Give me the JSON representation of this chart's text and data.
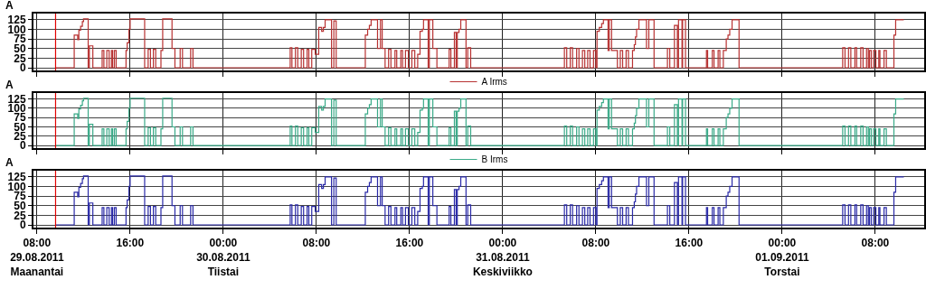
{
  "chart_data": [
    {
      "type": "step",
      "ylabel": "A",
      "legend": "bottom",
      "grid": true,
      "tick_labels": "y",
      "xlim": [
        "2011-08-29T07:42",
        "2011-09-01T12:12"
      ],
      "ylim": [
        -7,
        141
      ],
      "yticks": [
        0,
        25,
        50,
        75,
        100,
        125
      ],
      "xticks": [
        {
          "value": "2011-08-29T08:00",
          "label": null
        },
        {
          "value": "2011-08-29T16:00",
          "label": null
        },
        {
          "value": "2011-08-30T00:00",
          "label": null
        },
        {
          "value": "2011-08-30T08:00",
          "label": null
        },
        {
          "value": "2011-08-30T16:00",
          "label": null
        },
        {
          "value": "2011-08-31T00:00",
          "label": null
        },
        {
          "value": "2011-08-31T08:00",
          "label": null
        },
        {
          "value": "2011-08-31T16:00",
          "label": null
        },
        {
          "value": "2011-09-01T00:00",
          "label": null
        },
        {
          "value": "2011-09-01T08:00",
          "label": null
        }
      ],
      "ref_lines": [
        {
          "axis": "x",
          "value": "2011-08-29T09:36",
          "color": "#e00000"
        }
      ],
      "x": [
        "2011-08-29T09:36",
        "2011-08-29T11:12",
        "2011-08-29T11:30",
        "2011-08-29T11:36",
        "2011-08-29T11:45",
        "2011-08-29T11:54",
        "2011-08-29T12:00",
        "2011-08-29T12:24",
        "2011-08-29T12:30",
        "2011-08-29T12:48",
        "2011-08-29T13:36",
        "2011-08-29T13:45",
        "2011-08-29T14:00",
        "2011-08-29T14:12",
        "2011-08-29T14:24",
        "2011-08-29T14:30",
        "2011-08-29T14:39",
        "2011-08-29T14:48",
        "2011-08-29T15:39",
        "2011-08-29T15:45",
        "2011-08-29T15:54",
        "2011-08-29T16:00",
        "2011-08-29T17:15",
        "2011-08-29T17:33",
        "2011-08-29T17:45",
        "2011-08-29T18:00",
        "2011-08-29T18:12",
        "2011-08-29T18:39",
        "2011-08-29T18:48",
        "2011-08-29T19:36",
        "2011-08-29T19:51",
        "2011-08-29T20:18",
        "2011-08-29T20:30",
        "2011-08-29T21:12",
        "2011-08-29T21:24",
        "2011-08-30T05:45",
        "2011-08-30T05:54",
        "2011-08-30T06:12",
        "2011-08-30T06:24",
        "2011-08-30T06:42",
        "2011-08-30T06:54",
        "2011-08-30T07:12",
        "2011-08-30T07:21",
        "2011-08-30T07:36",
        "2011-08-30T07:54",
        "2011-08-30T08:12",
        "2011-08-30T08:27",
        "2011-08-30T08:36",
        "2011-08-30T08:45",
        "2011-08-30T09:18",
        "2011-08-30T09:30",
        "2011-08-30T09:42",
        "2011-08-30T12:12",
        "2011-08-30T12:24",
        "2011-08-30T12:33",
        "2011-08-30T12:42",
        "2011-08-30T13:15",
        "2011-08-30T13:30",
        "2011-08-30T13:39",
        "2011-08-30T13:54",
        "2011-08-30T14:12",
        "2011-08-30T14:24",
        "2011-08-30T14:45",
        "2011-08-30T14:54",
        "2011-08-30T15:15",
        "2011-08-30T15:24",
        "2011-08-30T15:39",
        "2011-08-30T15:54",
        "2011-08-30T16:12",
        "2011-08-30T16:27",
        "2011-08-30T16:42",
        "2011-08-30T16:54",
        "2011-08-30T17:06",
        "2011-08-30T17:12",
        "2011-08-30T17:36",
        "2011-08-30T17:42",
        "2011-08-30T18:00",
        "2011-08-30T18:21",
        "2011-08-30T19:24",
        "2011-08-30T19:33",
        "2011-08-30T19:51",
        "2011-08-30T20:00",
        "2011-08-30T20:06",
        "2011-08-30T20:15",
        "2011-08-30T20:24",
        "2011-08-30T20:51",
        "2011-08-30T21:00",
        "2011-08-30T21:15",
        "2011-08-31T05:18",
        "2011-08-31T05:30",
        "2011-08-31T05:48",
        "2011-08-31T06:00",
        "2011-08-31T06:21",
        "2011-08-31T06:33",
        "2011-08-31T06:51",
        "2011-08-31T07:03",
        "2011-08-31T07:18",
        "2011-08-31T07:30",
        "2011-08-31T07:48",
        "2011-08-31T08:00",
        "2011-08-31T08:06",
        "2011-08-31T08:18",
        "2011-08-31T08:30",
        "2011-08-31T08:39",
        "2011-08-31T09:03",
        "2011-08-31T09:09",
        "2011-08-31T09:21",
        "2011-08-31T09:51",
        "2011-08-31T10:06",
        "2011-08-31T10:18",
        "2011-08-31T10:36",
        "2011-08-31T10:48",
        "2011-08-31T11:09",
        "2011-08-31T11:18",
        "2011-08-31T11:24",
        "2011-08-31T11:30",
        "2011-08-31T11:42",
        "2011-08-31T12:21",
        "2011-08-31T12:33",
        "2011-08-31T13:00",
        "2011-08-31T14:09",
        "2011-08-31T14:21",
        "2011-08-31T14:45",
        "2011-08-31T15:00",
        "2011-08-31T15:06",
        "2011-08-31T15:24",
        "2011-08-31T15:27",
        "2011-08-31T15:42",
        "2011-08-31T17:30",
        "2011-08-31T17:36",
        "2011-08-31T18:00",
        "2011-08-31T18:09",
        "2011-08-31T18:30",
        "2011-08-31T18:39",
        "2011-08-31T18:57",
        "2011-08-31T19:12",
        "2011-08-31T19:21",
        "2011-08-31T19:30",
        "2011-08-31T19:42",
        "2011-08-31T20:18",
        "2011-09-01T05:12",
        "2011-09-01T05:24",
        "2011-09-01T05:42",
        "2011-09-01T05:54",
        "2011-09-01T06:15",
        "2011-09-01T06:24",
        "2011-09-01T06:45",
        "2011-09-01T06:57",
        "2011-09-01T07:15",
        "2011-09-01T07:24",
        "2011-09-01T07:30",
        "2011-09-01T07:39",
        "2011-09-01T07:51",
        "2011-09-01T08:03",
        "2011-09-01T08:18",
        "2011-09-01T08:24",
        "2011-09-01T08:45",
        "2011-09-01T08:57",
        "2011-09-01T09:36",
        "2011-09-01T09:45",
        "2011-09-01T10:27"
      ],
      "series": [
        {
          "name": "A Irms",
          "color": "#b83232",
          "values": [
            0,
            85,
            73,
            98,
            108,
            120,
            127,
            0,
            57,
            0,
            45,
            0,
            45,
            0,
            45,
            0,
            45,
            0,
            45,
            65,
            100,
            127,
            0,
            48,
            0,
            48,
            0,
            45,
            127,
            50,
            0,
            50,
            0,
            50,
            0,
            52,
            0,
            52,
            0,
            48,
            0,
            48,
            0,
            48,
            35,
            105,
            95,
            105,
            125,
            0,
            122,
            0,
            85,
            100,
            110,
            125,
            50,
            125,
            50,
            0,
            48,
            0,
            45,
            0,
            45,
            0,
            45,
            0,
            45,
            0,
            35,
            95,
            100,
            125,
            0,
            125,
            50,
            0,
            48,
            0,
            92,
            0,
            92,
            100,
            125,
            0,
            52,
            0,
            52,
            0,
            52,
            0,
            50,
            0,
            45,
            0,
            45,
            0,
            45,
            0,
            95,
            105,
            115,
            125,
            45,
            125,
            45,
            0,
            45,
            0,
            45,
            0,
            45,
            60,
            80,
            100,
            125,
            50,
            125,
            0,
            50,
            0,
            110,
            0,
            125,
            0,
            125,
            0,
            45,
            0,
            45,
            0,
            45,
            0,
            45,
            75,
            85,
            100,
            125,
            0,
            52,
            0,
            52,
            0,
            52,
            0,
            52,
            0,
            50,
            0,
            45,
            0,
            45,
            0,
            45,
            0,
            45,
            0,
            85,
            125,
            125
          ]
        }
      ]
    },
    {
      "type": "step",
      "ylabel": "A",
      "legend": "bottom",
      "grid": true,
      "tick_labels": "y",
      "xlim": [
        "2011-08-29T07:42",
        "2011-09-01T12:12"
      ],
      "ylim": [
        -7,
        141
      ],
      "yticks": [
        0,
        25,
        50,
        75,
        100,
        125
      ],
      "xticks": [
        {
          "value": "2011-08-29T08:00",
          "label": null
        },
        {
          "value": "2011-08-29T16:00",
          "label": null
        },
        {
          "value": "2011-08-30T00:00",
          "label": null
        },
        {
          "value": "2011-08-30T08:00",
          "label": null
        },
        {
          "value": "2011-08-30T16:00",
          "label": null
        },
        {
          "value": "2011-08-31T00:00",
          "label": null
        },
        {
          "value": "2011-08-31T08:00",
          "label": null
        },
        {
          "value": "2011-08-31T16:00",
          "label": null
        },
        {
          "value": "2011-09-01T00:00",
          "label": null
        },
        {
          "value": "2011-09-01T08:00",
          "label": null
        }
      ],
      "ref_lines": [
        {
          "axis": "x",
          "value": "2011-08-29T09:36",
          "color": "#e00000"
        }
      ],
      "x": [
        "2011-08-29T09:36",
        "2011-08-29T11:12",
        "2011-08-29T11:30",
        "2011-08-29T11:36",
        "2011-08-29T11:45",
        "2011-08-29T11:54",
        "2011-08-29T12:00",
        "2011-08-29T12:24",
        "2011-08-29T12:30",
        "2011-08-29T12:48",
        "2011-08-29T13:36",
        "2011-08-29T13:45",
        "2011-08-29T14:00",
        "2011-08-29T14:12",
        "2011-08-29T14:24",
        "2011-08-29T14:30",
        "2011-08-29T14:39",
        "2011-08-29T14:48",
        "2011-08-29T15:39",
        "2011-08-29T15:45",
        "2011-08-29T15:54",
        "2011-08-29T16:00",
        "2011-08-29T17:15",
        "2011-08-29T17:33",
        "2011-08-29T17:45",
        "2011-08-29T18:00",
        "2011-08-29T18:12",
        "2011-08-29T18:39",
        "2011-08-29T18:48",
        "2011-08-29T19:36",
        "2011-08-29T19:51",
        "2011-08-29T20:18",
        "2011-08-29T20:30",
        "2011-08-29T21:12",
        "2011-08-29T21:24",
        "2011-08-30T05:45",
        "2011-08-30T05:54",
        "2011-08-30T06:12",
        "2011-08-30T06:24",
        "2011-08-30T06:42",
        "2011-08-30T06:54",
        "2011-08-30T07:12",
        "2011-08-30T07:21",
        "2011-08-30T07:36",
        "2011-08-30T07:54",
        "2011-08-30T08:12",
        "2011-08-30T08:27",
        "2011-08-30T08:36",
        "2011-08-30T08:45",
        "2011-08-30T09:18",
        "2011-08-30T09:30",
        "2011-08-30T09:42",
        "2011-08-30T12:12",
        "2011-08-30T12:24",
        "2011-08-30T12:33",
        "2011-08-30T12:42",
        "2011-08-30T13:15",
        "2011-08-30T13:30",
        "2011-08-30T13:39",
        "2011-08-30T13:54",
        "2011-08-30T14:12",
        "2011-08-30T14:24",
        "2011-08-30T14:45",
        "2011-08-30T14:54",
        "2011-08-30T15:15",
        "2011-08-30T15:24",
        "2011-08-30T15:39",
        "2011-08-30T15:54",
        "2011-08-30T16:12",
        "2011-08-30T16:27",
        "2011-08-30T16:42",
        "2011-08-30T16:54",
        "2011-08-30T17:06",
        "2011-08-30T17:12",
        "2011-08-30T17:36",
        "2011-08-30T17:42",
        "2011-08-30T18:00",
        "2011-08-30T18:21",
        "2011-08-30T19:24",
        "2011-08-30T19:33",
        "2011-08-30T19:51",
        "2011-08-30T20:00",
        "2011-08-30T20:06",
        "2011-08-30T20:15",
        "2011-08-30T20:24",
        "2011-08-30T20:51",
        "2011-08-30T21:00",
        "2011-08-30T21:15",
        "2011-08-31T05:18",
        "2011-08-31T05:30",
        "2011-08-31T05:48",
        "2011-08-31T06:00",
        "2011-08-31T06:21",
        "2011-08-31T06:33",
        "2011-08-31T06:51",
        "2011-08-31T07:03",
        "2011-08-31T07:18",
        "2011-08-31T07:30",
        "2011-08-31T07:48",
        "2011-08-31T08:00",
        "2011-08-31T08:06",
        "2011-08-31T08:18",
        "2011-08-31T08:30",
        "2011-08-31T08:39",
        "2011-08-31T09:03",
        "2011-08-31T09:09",
        "2011-08-31T09:21",
        "2011-08-31T09:51",
        "2011-08-31T10:06",
        "2011-08-31T10:18",
        "2011-08-31T10:36",
        "2011-08-31T10:48",
        "2011-08-31T11:09",
        "2011-08-31T11:18",
        "2011-08-31T11:24",
        "2011-08-31T11:30",
        "2011-08-31T11:42",
        "2011-08-31T12:21",
        "2011-08-31T12:33",
        "2011-08-31T13:00",
        "2011-08-31T14:09",
        "2011-08-31T14:21",
        "2011-08-31T14:45",
        "2011-08-31T15:00",
        "2011-08-31T15:06",
        "2011-08-31T15:24",
        "2011-08-31T15:27",
        "2011-08-31T15:42",
        "2011-08-31T17:30",
        "2011-08-31T17:36",
        "2011-08-31T18:00",
        "2011-08-31T18:09",
        "2011-08-31T18:30",
        "2011-08-31T18:39",
        "2011-08-31T18:57",
        "2011-08-31T19:12",
        "2011-08-31T19:21",
        "2011-08-31T19:30",
        "2011-08-31T19:42",
        "2011-08-31T20:18",
        "2011-09-01T05:12",
        "2011-09-01T05:24",
        "2011-09-01T05:42",
        "2011-09-01T05:54",
        "2011-09-01T06:15",
        "2011-09-01T06:24",
        "2011-09-01T06:45",
        "2011-09-01T06:57",
        "2011-09-01T07:15",
        "2011-09-01T07:24",
        "2011-09-01T07:30",
        "2011-09-01T07:39",
        "2011-09-01T07:51",
        "2011-09-01T08:03",
        "2011-09-01T08:18",
        "2011-09-01T08:24",
        "2011-09-01T08:45",
        "2011-09-01T08:57",
        "2011-09-01T09:36",
        "2011-09-01T09:45",
        "2011-09-01T10:27"
      ],
      "series": [
        {
          "name": "B Irms",
          "color": "#3aaa88",
          "values": [
            0,
            85,
            73,
            98,
            108,
            120,
            127,
            0,
            57,
            0,
            45,
            0,
            45,
            0,
            45,
            0,
            45,
            0,
            45,
            65,
            100,
            127,
            0,
            48,
            0,
            48,
            0,
            45,
            127,
            50,
            0,
            50,
            0,
            50,
            0,
            52,
            0,
            52,
            0,
            48,
            0,
            48,
            0,
            48,
            35,
            105,
            95,
            105,
            125,
            0,
            122,
            0,
            85,
            100,
            110,
            125,
            50,
            125,
            50,
            0,
            48,
            0,
            45,
            0,
            45,
            0,
            45,
            0,
            45,
            0,
            35,
            95,
            100,
            125,
            0,
            125,
            50,
            0,
            48,
            0,
            92,
            0,
            92,
            100,
            125,
            0,
            52,
            0,
            52,
            0,
            52,
            0,
            50,
            0,
            45,
            0,
            45,
            0,
            45,
            0,
            95,
            105,
            115,
            125,
            45,
            125,
            45,
            0,
            45,
            0,
            45,
            0,
            45,
            60,
            80,
            100,
            125,
            50,
            125,
            0,
            50,
            0,
            110,
            0,
            125,
            0,
            125,
            0,
            45,
            0,
            45,
            0,
            45,
            0,
            45,
            75,
            85,
            100,
            125,
            0,
            52,
            0,
            52,
            0,
            52,
            0,
            52,
            0,
            50,
            0,
            45,
            0,
            45,
            0,
            45,
            0,
            45,
            0,
            85,
            125,
            125
          ]
        }
      ]
    },
    {
      "type": "step",
      "ylabel": "A",
      "grid": true,
      "xlim": [
        "2011-08-29T07:42",
        "2011-09-01T12:12"
      ],
      "ylim": [
        -7,
        141
      ],
      "yticks": [
        0,
        25,
        50,
        75,
        100,
        125
      ],
      "xticks": [
        {
          "value": "2011-08-29T08:00",
          "label": "08:00\n29.08.2011\nMaanantai"
        },
        {
          "value": "2011-08-29T16:00",
          "label": "16:00"
        },
        {
          "value": "2011-08-30T00:00",
          "label": "00:00\n30.08.2011\nTiistai"
        },
        {
          "value": "2011-08-30T08:00",
          "label": "08:00"
        },
        {
          "value": "2011-08-30T16:00",
          "label": "16:00"
        },
        {
          "value": "2011-08-31T00:00",
          "label": "00:00\n31.08.2011\nKeskiviikko"
        },
        {
          "value": "2011-08-31T08:00",
          "label": "08:00"
        },
        {
          "value": "2011-08-31T16:00",
          "label": "16:00"
        },
        {
          "value": "2011-09-01T00:00",
          "label": "00:00\n01.09.2011\nTorstai"
        },
        {
          "value": "2011-09-01T08:00",
          "label": "08:00"
        }
      ],
      "ref_lines": [
        {
          "axis": "x",
          "value": "2011-08-29T09:36",
          "color": "#e00000"
        }
      ],
      "x": [
        "2011-08-29T09:36",
        "2011-08-29T11:12",
        "2011-08-29T11:30",
        "2011-08-29T11:36",
        "2011-08-29T11:45",
        "2011-08-29T11:54",
        "2011-08-29T12:00",
        "2011-08-29T12:24",
        "2011-08-29T12:30",
        "2011-08-29T12:48",
        "2011-08-29T13:36",
        "2011-08-29T13:45",
        "2011-08-29T14:00",
        "2011-08-29T14:12",
        "2011-08-29T14:24",
        "2011-08-29T14:30",
        "2011-08-29T14:39",
        "2011-08-29T14:48",
        "2011-08-29T15:39",
        "2011-08-29T15:45",
        "2011-08-29T15:54",
        "2011-08-29T16:00",
        "2011-08-29T17:15",
        "2011-08-29T17:33",
        "2011-08-29T17:45",
        "2011-08-29T18:00",
        "2011-08-29T18:12",
        "2011-08-29T18:39",
        "2011-08-29T18:48",
        "2011-08-29T19:36",
        "2011-08-29T19:51",
        "2011-08-29T20:18",
        "2011-08-29T20:30",
        "2011-08-29T21:12",
        "2011-08-29T21:24",
        "2011-08-30T05:45",
        "2011-08-30T05:54",
        "2011-08-30T06:12",
        "2011-08-30T06:24",
        "2011-08-30T06:42",
        "2011-08-30T06:54",
        "2011-08-30T07:12",
        "2011-08-30T07:21",
        "2011-08-30T07:36",
        "2011-08-30T07:54",
        "2011-08-30T08:12",
        "2011-08-30T08:27",
        "2011-08-30T08:36",
        "2011-08-30T08:45",
        "2011-08-30T09:18",
        "2011-08-30T09:30",
        "2011-08-30T09:42",
        "2011-08-30T12:12",
        "2011-08-30T12:24",
        "2011-08-30T12:33",
        "2011-08-30T12:42",
        "2011-08-30T13:15",
        "2011-08-30T13:30",
        "2011-08-30T13:39",
        "2011-08-30T13:54",
        "2011-08-30T14:12",
        "2011-08-30T14:24",
        "2011-08-30T14:45",
        "2011-08-30T14:54",
        "2011-08-30T15:15",
        "2011-08-30T15:24",
        "2011-08-30T15:39",
        "2011-08-30T15:54",
        "2011-08-30T16:12",
        "2011-08-30T16:27",
        "2011-08-30T16:42",
        "2011-08-30T16:54",
        "2011-08-30T17:06",
        "2011-08-30T17:12",
        "2011-08-30T17:36",
        "2011-08-30T17:42",
        "2011-08-30T18:00",
        "2011-08-30T18:21",
        "2011-08-30T19:24",
        "2011-08-30T19:33",
        "2011-08-30T19:51",
        "2011-08-30T20:00",
        "2011-08-30T20:06",
        "2011-08-30T20:15",
        "2011-08-30T20:24",
        "2011-08-30T20:51",
        "2011-08-30T21:00",
        "2011-08-30T21:15",
        "2011-08-31T05:18",
        "2011-08-31T05:30",
        "2011-08-31T05:48",
        "2011-08-31T06:00",
        "2011-08-31T06:21",
        "2011-08-31T06:33",
        "2011-08-31T06:51",
        "2011-08-31T07:03",
        "2011-08-31T07:18",
        "2011-08-31T07:30",
        "2011-08-31T07:48",
        "2011-08-31T08:00",
        "2011-08-31T08:06",
        "2011-08-31T08:18",
        "2011-08-31T08:30",
        "2011-08-31T08:39",
        "2011-08-31T09:03",
        "2011-08-31T09:09",
        "2011-08-31T09:21",
        "2011-08-31T09:51",
        "2011-08-31T10:06",
        "2011-08-31T10:18",
        "2011-08-31T10:36",
        "2011-08-31T10:48",
        "2011-08-31T11:09",
        "2011-08-31T11:18",
        "2011-08-31T11:24",
        "2011-08-31T11:30",
        "2011-08-31T11:42",
        "2011-08-31T12:21",
        "2011-08-31T12:33",
        "2011-08-31T13:00",
        "2011-08-31T14:09",
        "2011-08-31T14:21",
        "2011-08-31T14:45",
        "2011-08-31T15:00",
        "2011-08-31T15:06",
        "2011-08-31T15:24",
        "2011-08-31T15:27",
        "2011-08-31T15:42",
        "2011-08-31T17:30",
        "2011-08-31T17:36",
        "2011-08-31T18:00",
        "2011-08-31T18:09",
        "2011-08-31T18:30",
        "2011-08-31T18:39",
        "2011-08-31T18:57",
        "2011-08-31T19:12",
        "2011-08-31T19:21",
        "2011-08-31T19:30",
        "2011-08-31T19:42",
        "2011-08-31T20:18",
        "2011-09-01T05:12",
        "2011-09-01T05:24",
        "2011-09-01T05:42",
        "2011-09-01T05:54",
        "2011-09-01T06:15",
        "2011-09-01T06:24",
        "2011-09-01T06:45",
        "2011-09-01T06:57",
        "2011-09-01T07:15",
        "2011-09-01T07:24",
        "2011-09-01T07:30",
        "2011-09-01T07:39",
        "2011-09-01T07:51",
        "2011-09-01T08:03",
        "2011-09-01T08:18",
        "2011-09-01T08:24",
        "2011-09-01T08:45",
        "2011-09-01T08:57",
        "2011-09-01T09:36",
        "2011-09-01T09:45",
        "2011-09-01T10:27"
      ],
      "series": [
        {
          "color": "#2a2aa8",
          "values": [
            0,
            85,
            73,
            98,
            108,
            120,
            127,
            0,
            57,
            0,
            45,
            0,
            45,
            0,
            45,
            0,
            45,
            0,
            45,
            65,
            100,
            127,
            0,
            48,
            0,
            48,
            0,
            45,
            127,
            50,
            0,
            50,
            0,
            50,
            0,
            52,
            0,
            52,
            0,
            48,
            0,
            48,
            0,
            48,
            35,
            105,
            95,
            105,
            125,
            0,
            122,
            0,
            85,
            100,
            110,
            125,
            50,
            125,
            50,
            0,
            48,
            0,
            45,
            0,
            45,
            0,
            45,
            0,
            45,
            0,
            35,
            95,
            100,
            125,
            0,
            125,
            50,
            0,
            48,
            0,
            92,
            0,
            92,
            100,
            125,
            0,
            52,
            0,
            52,
            0,
            52,
            0,
            50,
            0,
            45,
            0,
            45,
            0,
            45,
            0,
            95,
            105,
            115,
            125,
            45,
            125,
            45,
            0,
            45,
            0,
            45,
            0,
            45,
            60,
            80,
            100,
            125,
            50,
            125,
            0,
            50,
            0,
            110,
            0,
            125,
            0,
            125,
            0,
            45,
            0,
            45,
            0,
            45,
            0,
            45,
            75,
            85,
            100,
            125,
            0,
            52,
            0,
            52,
            0,
            52,
            0,
            52,
            0,
            50,
            0,
            45,
            0,
            45,
            0,
            45,
            0,
            45,
            0,
            85,
            125,
            125
          ]
        }
      ]
    }
  ]
}
